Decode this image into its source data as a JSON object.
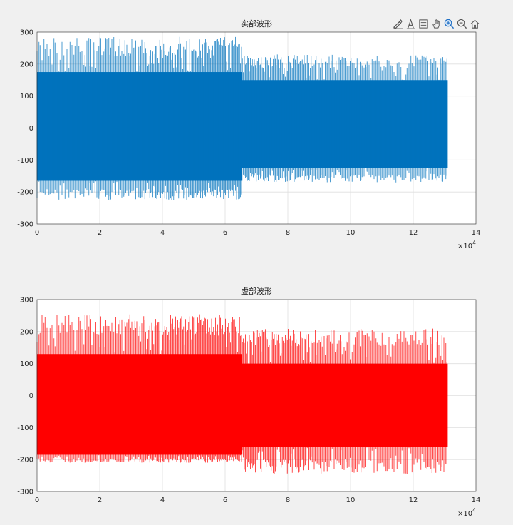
{
  "toolbar": {
    "buttons": [
      {
        "icon": "brush-icon"
      },
      {
        "icon": "data-tips-icon"
      },
      {
        "icon": "legend-icon"
      },
      {
        "icon": "pan-hand-icon"
      },
      {
        "icon": "zoom-in-icon"
      },
      {
        "icon": "zoom-out-icon"
      },
      {
        "icon": "home-icon"
      }
    ]
  },
  "chart_data": [
    {
      "type": "line",
      "title": "实部波形",
      "color": "#0072BD",
      "xlim": [
        0,
        140000
      ],
      "ylim": [
        -300,
        300
      ],
      "x_ticks": [
        "0",
        "2",
        "4",
        "6",
        "8",
        "10",
        "12",
        "14"
      ],
      "y_ticks": [
        "300",
        "200",
        "100",
        "0",
        "-100",
        "-200",
        "-300"
      ],
      "x_exponent_base": "×10",
      "x_exponent_power": "4",
      "grid": true,
      "segments": [
        {
          "x_start": 0,
          "x_end": 65500,
          "dense_max": 175,
          "dense_min": -165,
          "peak_max": 285,
          "peak_min": -225
        },
        {
          "x_start": 65500,
          "x_end": 131000,
          "dense_max": 150,
          "dense_min": -125,
          "peak_max": 230,
          "peak_min": -170
        }
      ]
    },
    {
      "type": "line",
      "title": "虚部波形",
      "color": "#FF0000",
      "xlim": [
        0,
        140000
      ],
      "ylim": [
        -300,
        300
      ],
      "x_ticks": [
        "0",
        "2",
        "4",
        "6",
        "8",
        "10",
        "12",
        "14"
      ],
      "y_ticks": [
        "300",
        "200",
        "100",
        "0",
        "-100",
        "-200",
        "-300"
      ],
      "x_exponent_base": "×10",
      "x_exponent_power": "4",
      "grid": true,
      "segments": [
        {
          "x_start": 0,
          "x_end": 65500,
          "dense_max": 130,
          "dense_min": -185,
          "peak_max": 255,
          "peak_min": -210
        },
        {
          "x_start": 65500,
          "x_end": 131000,
          "dense_max": 100,
          "dense_min": -160,
          "peak_max": 210,
          "peak_min": -245
        }
      ]
    }
  ]
}
